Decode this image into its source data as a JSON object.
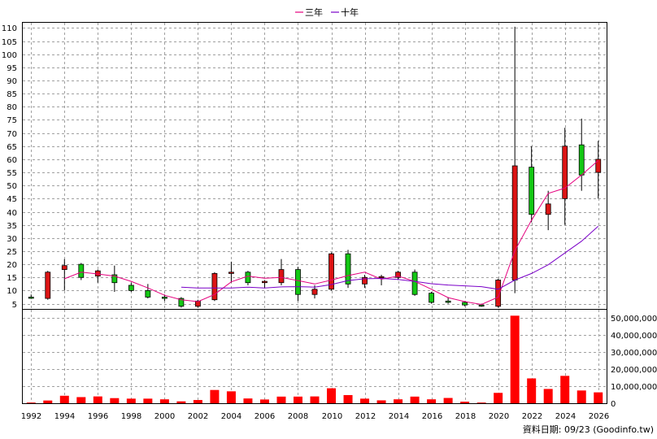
{
  "chart_data": [
    {
      "type": "candlestick",
      "legend": [
        {
          "name": "三年",
          "color": "#e6007e"
        },
        {
          "name": "十年",
          "color": "#7a00c8"
        }
      ],
      "ylim": [
        3,
        112
      ],
      "yticks": [
        5,
        10,
        15,
        20,
        25,
        30,
        35,
        40,
        45,
        50,
        55,
        60,
        65,
        70,
        75,
        80,
        85,
        90,
        95,
        100,
        105,
        110
      ],
      "xlim": [
        1991.5,
        2026.5
      ],
      "xticks": [
        1992,
        1994,
        1996,
        1998,
        2000,
        2002,
        2004,
        2006,
        2008,
        2010,
        2012,
        2014,
        2016,
        2018,
        2020,
        2022,
        2024,
        2026
      ],
      "grid": true,
      "up_color": "#dc1414",
      "down_color": "#14c814",
      "candles": [
        {
          "year": 1992,
          "open": 7.5,
          "close": 7.3,
          "high": 8.5,
          "low": 6.8
        },
        {
          "year": 1993,
          "open": 7,
          "close": 17,
          "high": 17.5,
          "low": 6.5
        },
        {
          "year": 1994,
          "open": 18,
          "close": 19.5,
          "high": 22,
          "low": 10
        },
        {
          "year": 1995,
          "open": 20,
          "close": 15,
          "high": 20.5,
          "low": 14
        },
        {
          "year": 1996,
          "open": 15.5,
          "close": 17.5,
          "high": 18,
          "low": 13
        },
        {
          "year": 1997,
          "open": 16,
          "close": 13,
          "high": 19.5,
          "low": 9.5
        },
        {
          "year": 1998,
          "open": 12,
          "close": 10,
          "high": 13,
          "low": 9.5
        },
        {
          "year": 1999,
          "open": 10,
          "close": 7.5,
          "high": 12.5,
          "low": 7
        },
        {
          "year": 2000,
          "open": 7.5,
          "close": 7,
          "high": 8.5,
          "low": 6
        },
        {
          "year": 2001,
          "open": 7,
          "close": 4,
          "high": 7.5,
          "low": 3.5
        },
        {
          "year": 2002,
          "open": 4,
          "close": 6,
          "high": 6.5,
          "low": 3.5
        },
        {
          "year": 2003,
          "open": 6.5,
          "close": 16.5,
          "high": 17,
          "low": 6
        },
        {
          "year": 2004,
          "open": 16.5,
          "close": 17,
          "high": 21,
          "low": 13
        },
        {
          "year": 2005,
          "open": 17,
          "close": 13,
          "high": 17.5,
          "low": 12
        },
        {
          "year": 2006,
          "open": 13,
          "close": 13.5,
          "high": 14,
          "low": 11
        },
        {
          "year": 2007,
          "open": 13,
          "close": 18,
          "high": 22,
          "low": 12
        },
        {
          "year": 2008,
          "open": 18,
          "close": 8.5,
          "high": 19,
          "low": 6
        },
        {
          "year": 2009,
          "open": 8.5,
          "close": 10.5,
          "high": 12,
          "low": 7
        },
        {
          "year": 2010,
          "open": 10.5,
          "close": 24,
          "high": 24.5,
          "low": 10
        },
        {
          "year": 2011,
          "open": 24,
          "close": 12.5,
          "high": 25.5,
          "low": 11
        },
        {
          "year": 2012,
          "open": 12.5,
          "close": 15,
          "high": 16,
          "low": 11
        },
        {
          "year": 2013,
          "open": 15,
          "close": 15.3,
          "high": 16,
          "low": 12
        },
        {
          "year": 2014,
          "open": 15,
          "close": 17,
          "high": 17.5,
          "low": 14
        },
        {
          "year": 2015,
          "open": 17,
          "close": 8.5,
          "high": 18,
          "low": 8
        },
        {
          "year": 2016,
          "open": 9,
          "close": 5.5,
          "high": 9.5,
          "low": 5
        },
        {
          "year": 2017,
          "open": 6,
          "close": 5.5,
          "high": 7.5,
          "low": 5
        },
        {
          "year": 2018,
          "open": 5.5,
          "close": 4.5,
          "high": 6,
          "low": 4
        },
        {
          "year": 2019,
          "open": 4.5,
          "close": 4.2,
          "high": 5,
          "low": 3.8
        },
        {
          "year": 2020,
          "open": 4,
          "close": 14,
          "high": 14.5,
          "low": 3.5
        },
        {
          "year": 2021,
          "open": 14,
          "close": 57.5,
          "high": 110.5,
          "low": 9
        },
        {
          "year": 2022,
          "open": 57,
          "close": 39,
          "high": 65,
          "low": 36
        },
        {
          "year": 2023,
          "open": 39,
          "close": 43,
          "high": 48,
          "low": 33
        },
        {
          "year": 2024,
          "open": 45,
          "close": 65,
          "high": 72,
          "low": 35
        },
        {
          "year": 2025,
          "open": 65.5,
          "close": 54,
          "high": 75.5,
          "low": 48
        },
        {
          "year": 2026,
          "open": 55,
          "close": 60,
          "high": 67,
          "low": 45
        }
      ],
      "series": [
        {
          "name": "三年",
          "points": [
            [
              1994,
              14.5
            ],
            [
              1995,
              17
            ],
            [
              1996,
              16.3
            ],
            [
              1997,
              15.5
            ],
            [
              1998,
              13.5
            ],
            [
              1999,
              11
            ],
            [
              2000,
              8.2
            ],
            [
              2001,
              6.5
            ],
            [
              2002,
              5.8
            ],
            [
              2003,
              8.5
            ],
            [
              2004,
              13.3
            ],
            [
              2005,
              15.5
            ],
            [
              2006,
              14.7
            ],
            [
              2007,
              15
            ],
            [
              2008,
              13.8
            ],
            [
              2009,
              12.5
            ],
            [
              2010,
              14
            ],
            [
              2011,
              15.7
            ],
            [
              2012,
              17
            ],
            [
              2013,
              14.3
            ],
            [
              2014,
              15.5
            ],
            [
              2015,
              13.5
            ],
            [
              2016,
              10.5
            ],
            [
              2017,
              7.3
            ],
            [
              2018,
              5.8
            ],
            [
              2019,
              4.7
            ],
            [
              2020,
              7.5
            ],
            [
              2021,
              25.2
            ],
            [
              2022,
              36.8
            ],
            [
              2023,
              47
            ],
            [
              2024,
              49
            ],
            [
              2025,
              54
            ],
            [
              2026,
              59.5
            ]
          ]
        },
        {
          "name": "十年",
          "points": [
            [
              2001,
              11.3
            ],
            [
              2002,
              11
            ],
            [
              2003,
              11
            ],
            [
              2004,
              11
            ],
            [
              2005,
              11.3
            ],
            [
              2006,
              11
            ],
            [
              2007,
              11.4
            ],
            [
              2008,
              11.5
            ],
            [
              2009,
              11.3
            ],
            [
              2010,
              12.3
            ],
            [
              2011,
              13.8
            ],
            [
              2012,
              14.5
            ],
            [
              2013,
              14.6
            ],
            [
              2014,
              14.2
            ],
            [
              2015,
              13.5
            ],
            [
              2016,
              12.6
            ],
            [
              2017,
              12.1
            ],
            [
              2018,
              11.8
            ],
            [
              2019,
              11.5
            ],
            [
              2020,
              10.5
            ],
            [
              2021,
              14
            ],
            [
              2022,
              16.5
            ],
            [
              2023,
              19.8
            ],
            [
              2024,
              24.3
            ],
            [
              2025,
              28.8
            ],
            [
              2026,
              34.5
            ]
          ]
        }
      ]
    },
    {
      "type": "bar",
      "ylim": [
        0,
        55000000
      ],
      "yticks": [
        0,
        10000000,
        20000000,
        30000000,
        40000000,
        50000000
      ],
      "ytick_labels": [
        "0",
        "10,000,000",
        "20,000,000",
        "30,000,000",
        "40,000,000",
        "50,000,000"
      ],
      "bar_color": "#ff0000",
      "grid": true,
      "categories": [
        1992,
        1993,
        1994,
        1995,
        1996,
        1997,
        1998,
        1999,
        2000,
        2001,
        2002,
        2003,
        2004,
        2005,
        2006,
        2007,
        2008,
        2009,
        2010,
        2011,
        2012,
        2013,
        2014,
        2015,
        2016,
        2017,
        2018,
        2019,
        2020,
        2021,
        2022,
        2023,
        2024,
        2025,
        2026
      ],
      "values": [
        400000,
        1600000,
        4400000,
        3600000,
        4000000,
        3000000,
        2700000,
        2700000,
        2300000,
        1100000,
        1900000,
        7800000,
        7000000,
        2800000,
        2200000,
        3900000,
        3900000,
        4000000,
        8800000,
        4800000,
        2700000,
        1700000,
        2300000,
        3900000,
        2300000,
        3100000,
        900000,
        400000,
        6100000,
        51500000,
        14600000,
        8400000,
        16100000,
        7500000,
        6400000
      ]
    }
  ],
  "credit": "資料日期: 09/23  (Goodinfo.tw)"
}
